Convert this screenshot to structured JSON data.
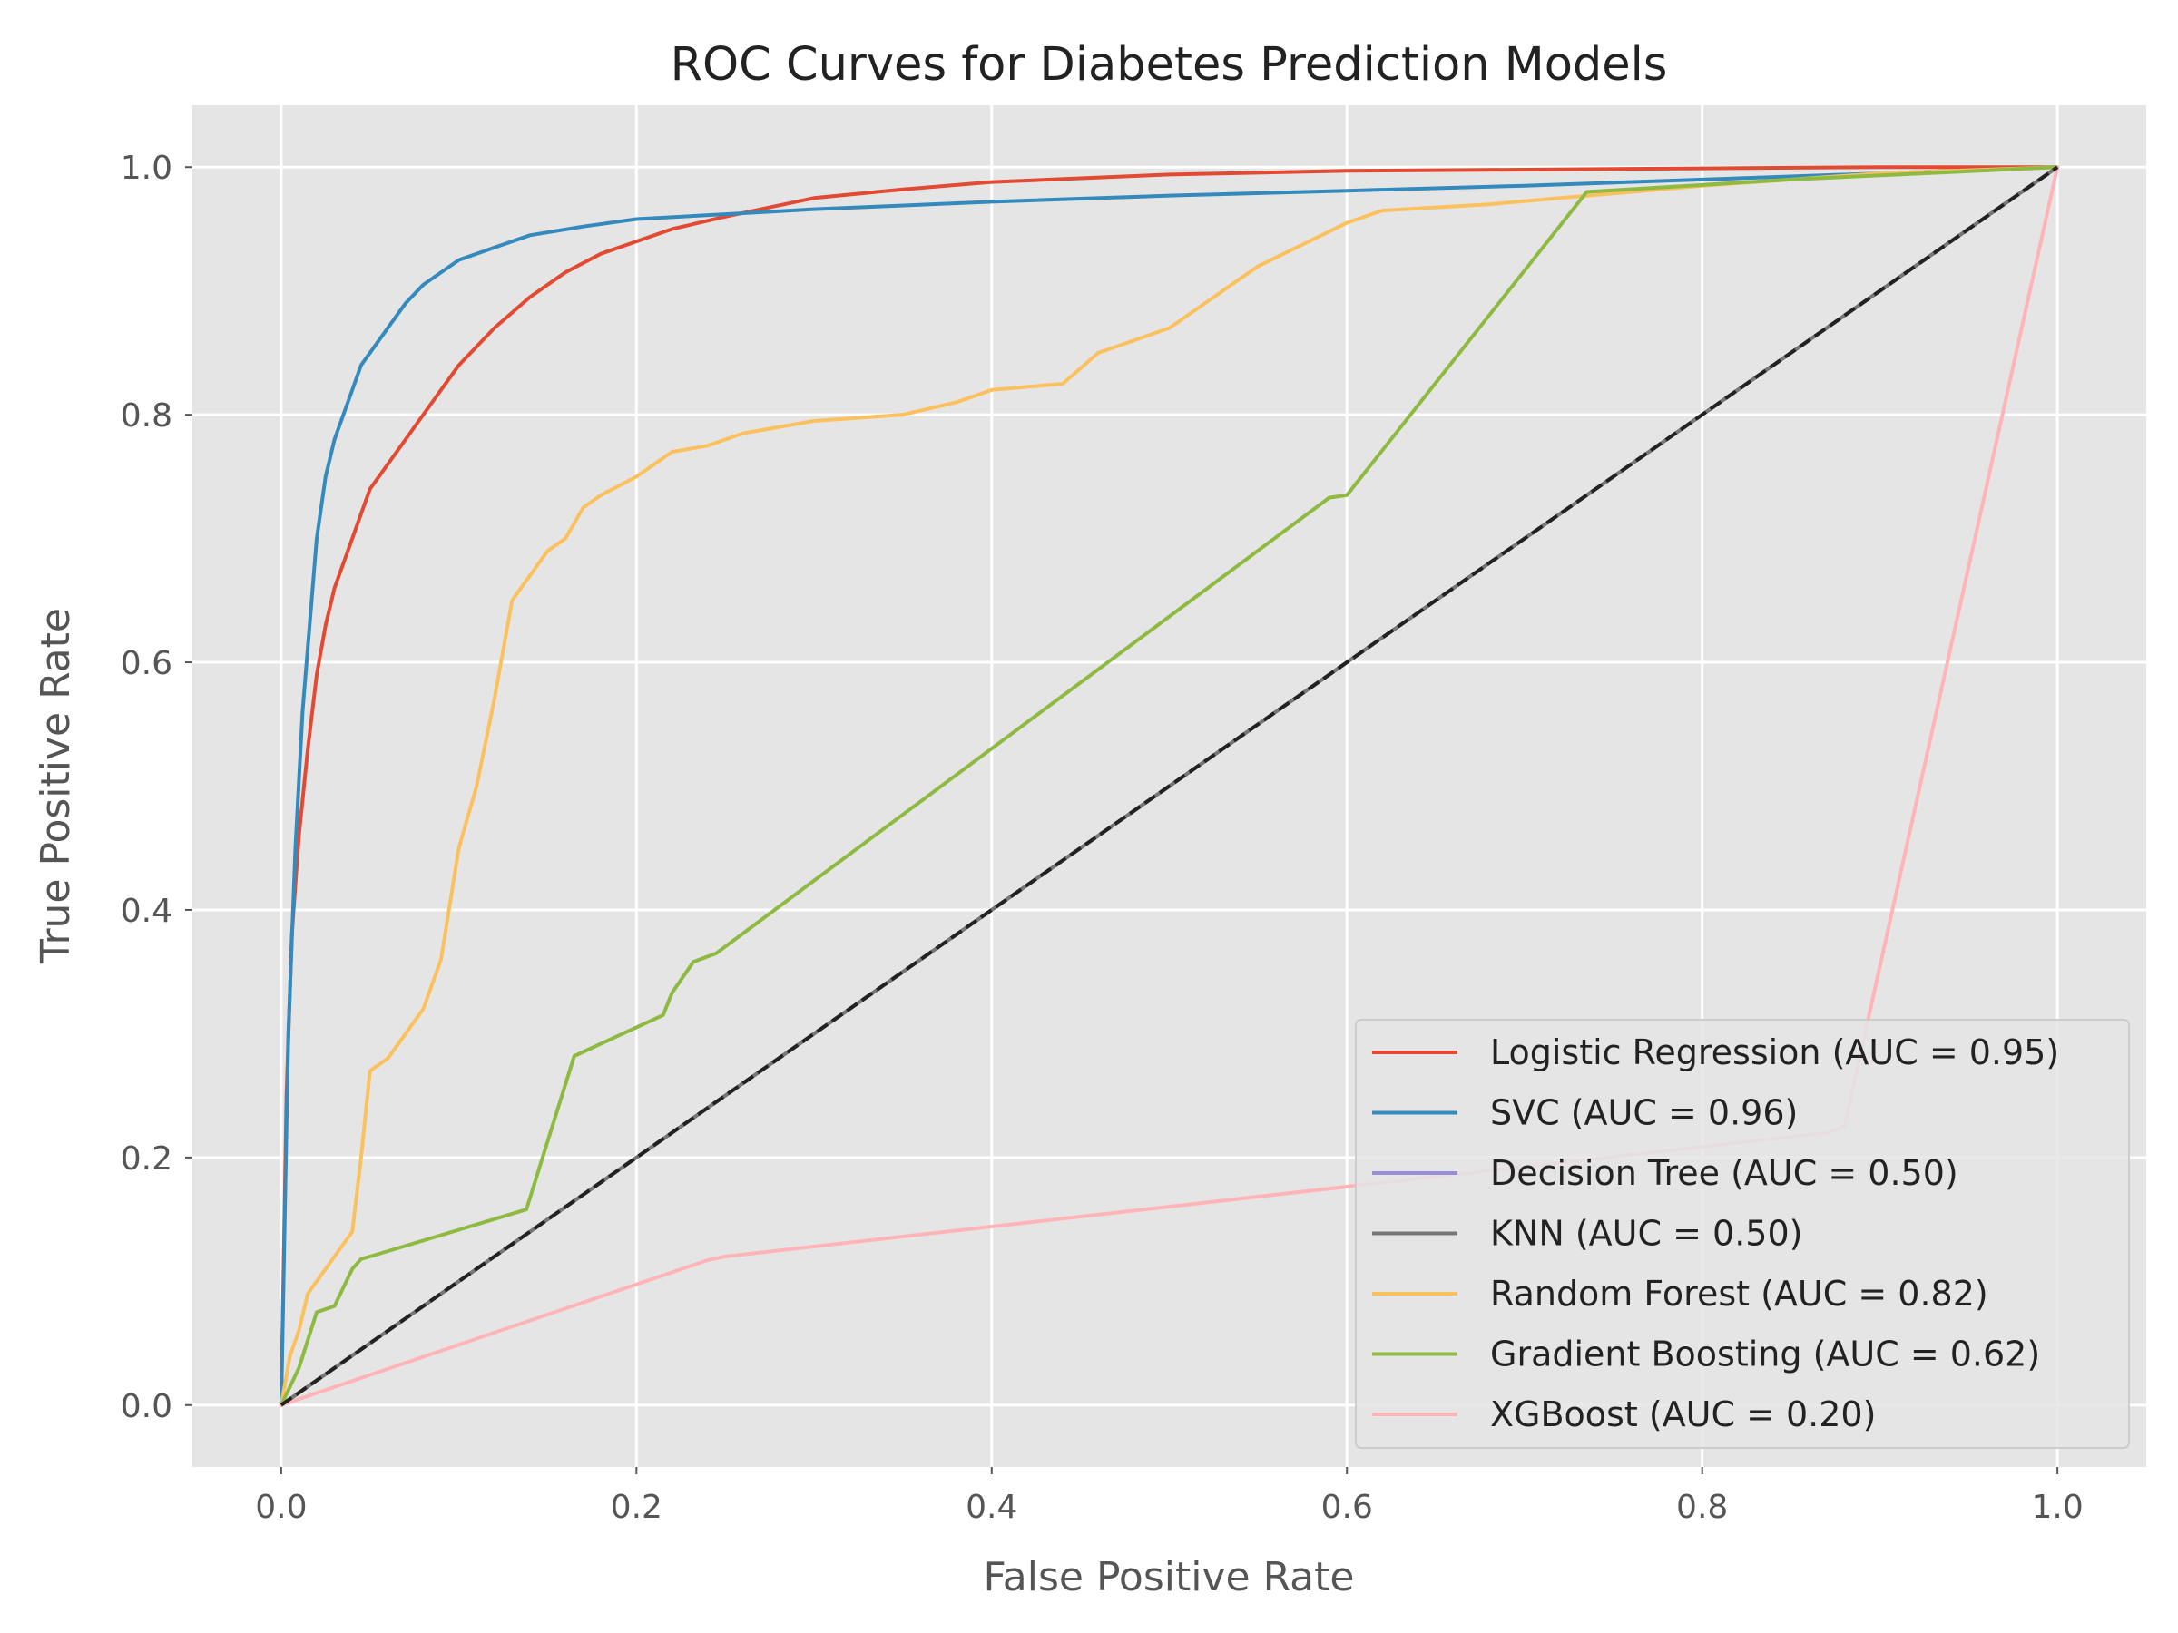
{
  "chart_data": {
    "type": "line",
    "title": "ROC Curves for Diabetes Prediction Models",
    "xlabel": "False Positive Rate",
    "ylabel": "True Positive Rate",
    "xlim": [
      -0.05,
      1.05
    ],
    "ylim": [
      -0.05,
      1.05
    ],
    "xticks": [
      {
        "value": 0.0,
        "label": "0.0"
      },
      {
        "value": 0.2,
        "label": "0.2"
      },
      {
        "value": 0.4,
        "label": "0.4"
      },
      {
        "value": 0.6,
        "label": "0.6"
      },
      {
        "value": 0.8,
        "label": "0.8"
      },
      {
        "value": 1.0,
        "label": "1.0"
      }
    ],
    "yticks": [
      {
        "value": 0.0,
        "label": "0.0"
      },
      {
        "value": 0.2,
        "label": "0.2"
      },
      {
        "value": 0.4,
        "label": "0.4"
      },
      {
        "value": 0.6,
        "label": "0.6"
      },
      {
        "value": 0.8,
        "label": "0.8"
      },
      {
        "value": 1.0,
        "label": "1.0"
      }
    ],
    "grid": true,
    "legend_position": "lower right",
    "colors": {
      "plot_background": "#e5e5e5",
      "grid": "#ffffff",
      "diagonal": "#222222"
    },
    "series": [
      {
        "name": "Logistic Regression (AUC = 0.95)",
        "color": "#e24a33",
        "x": [
          0,
          0.003,
          0.006,
          0.01,
          0.015,
          0.02,
          0.025,
          0.03,
          0.035,
          0.04,
          0.045,
          0.05,
          0.06,
          0.07,
          0.08,
          0.09,
          0.1,
          0.12,
          0.14,
          0.16,
          0.18,
          0.2,
          0.22,
          0.25,
          0.3,
          0.35,
          0.4,
          0.45,
          0.5,
          0.6,
          0.7,
          0.8,
          0.9,
          1.0
        ],
        "y": [
          0,
          0.25,
          0.38,
          0.46,
          0.53,
          0.59,
          0.63,
          0.66,
          0.68,
          0.7,
          0.72,
          0.74,
          0.76,
          0.78,
          0.8,
          0.82,
          0.84,
          0.87,
          0.895,
          0.915,
          0.93,
          0.94,
          0.95,
          0.96,
          0.975,
          0.982,
          0.988,
          0.991,
          0.994,
          0.997,
          0.998,
          0.999,
          1.0,
          1.0
        ]
      },
      {
        "name": "SVC (AUC = 0.96)",
        "color": "#348abd",
        "x": [
          0,
          0.004,
          0.008,
          0.012,
          0.016,
          0.02,
          0.025,
          0.03,
          0.035,
          0.04,
          0.045,
          0.05,
          0.06,
          0.07,
          0.08,
          0.1,
          0.12,
          0.14,
          0.17,
          0.2,
          0.25,
          0.3,
          0.4,
          0.5,
          0.6,
          0.7,
          0.8,
          0.9,
          1.0
        ],
        "y": [
          0,
          0.3,
          0.45,
          0.56,
          0.63,
          0.7,
          0.75,
          0.78,
          0.8,
          0.82,
          0.84,
          0.85,
          0.87,
          0.89,
          0.905,
          0.925,
          0.935,
          0.945,
          0.952,
          0.958,
          0.962,
          0.966,
          0.972,
          0.977,
          0.981,
          0.985,
          0.99,
          0.995,
          1.0
        ]
      },
      {
        "name": "Decision Tree (AUC = 0.50)",
        "color": "#988ed5",
        "x": [
          0,
          1
        ],
        "y": [
          0,
          1
        ]
      },
      {
        "name": "KNN (AUC = 0.50)",
        "color": "#777777",
        "x": [
          0,
          1
        ],
        "y": [
          0,
          1
        ]
      },
      {
        "name": "Random Forest (AUC = 0.82)",
        "color": "#fbc15e",
        "x": [
          0,
          0.005,
          0.01,
          0.015,
          0.02,
          0.03,
          0.04,
          0.045,
          0.05,
          0.055,
          0.06,
          0.07,
          0.08,
          0.09,
          0.1,
          0.11,
          0.12,
          0.13,
          0.14,
          0.15,
          0.16,
          0.17,
          0.18,
          0.2,
          0.22,
          0.24,
          0.26,
          0.3,
          0.35,
          0.38,
          0.4,
          0.44,
          0.46,
          0.5,
          0.55,
          0.6,
          0.62,
          0.68,
          0.72,
          0.8,
          0.9,
          1.0
        ],
        "y": [
          0,
          0.04,
          0.06,
          0.09,
          0.1,
          0.12,
          0.14,
          0.2,
          0.27,
          0.275,
          0.28,
          0.3,
          0.32,
          0.36,
          0.45,
          0.5,
          0.57,
          0.65,
          0.67,
          0.69,
          0.7,
          0.725,
          0.735,
          0.75,
          0.77,
          0.775,
          0.785,
          0.795,
          0.8,
          0.81,
          0.82,
          0.825,
          0.85,
          0.87,
          0.92,
          0.955,
          0.965,
          0.97,
          0.975,
          0.985,
          0.995,
          1.0
        ]
      },
      {
        "name": "Gradient Boosting (AUC = 0.62)",
        "color": "#8eba42",
        "x": [
          0,
          0.01,
          0.02,
          0.03,
          0.04,
          0.045,
          0.05,
          0.138,
          0.165,
          0.215,
          0.22,
          0.232,
          0.245,
          0.59,
          0.6,
          0.735,
          0.85,
          1.0
        ],
        "y": [
          0,
          0.03,
          0.075,
          0.08,
          0.11,
          0.118,
          0.12,
          0.158,
          0.282,
          0.315,
          0.333,
          0.358,
          0.365,
          0.733,
          0.735,
          0.98,
          0.99,
          1.0
        ]
      },
      {
        "name": "XGBoost (AUC = 0.20)",
        "color": "#ffb5b8",
        "x": [
          0,
          0.24,
          0.25,
          0.87,
          0.88,
          1.0
        ],
        "y": [
          0,
          0.117,
          0.12,
          0.22,
          0.225,
          1.0
        ]
      }
    ]
  }
}
